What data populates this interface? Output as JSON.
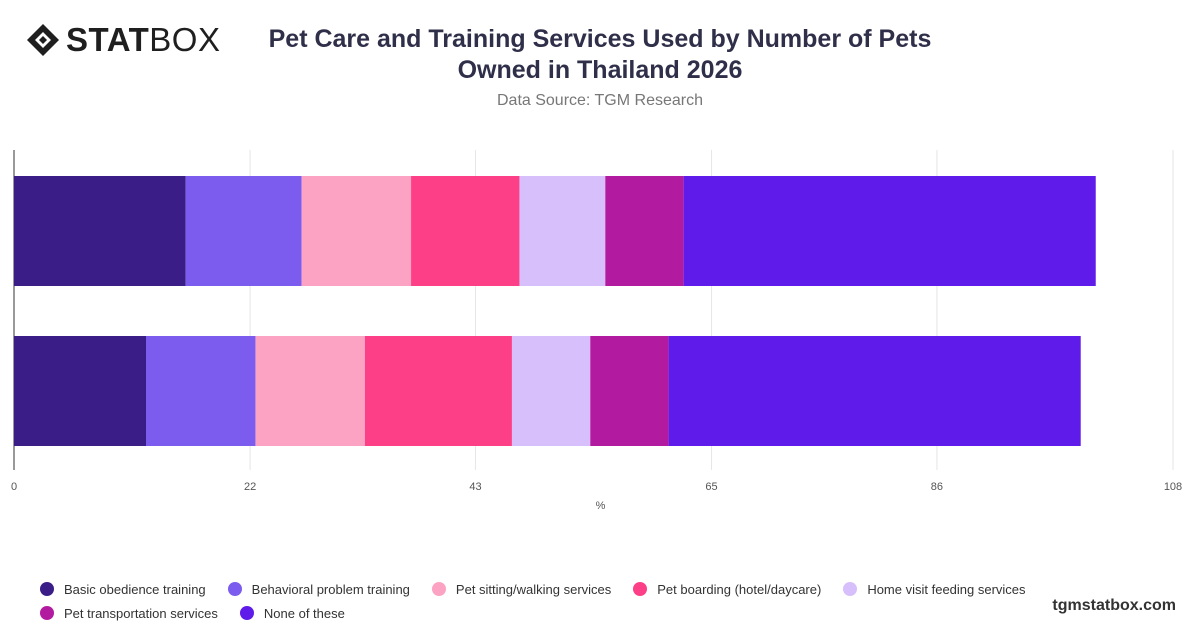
{
  "brand": {
    "logo_bold": "STAT",
    "logo_light": "BOX",
    "watermark": "tgmstatbox.com"
  },
  "chart_data": {
    "type": "bar",
    "orientation": "horizontal",
    "stacked": true,
    "title": "Pet Care and Training Services Used by Number of Pets Owned in Thailand 2026",
    "subtitle": "Data Source: TGM Research",
    "xlabel": "%",
    "ylabel": "",
    "xlim": [
      0,
      108
    ],
    "xticks": [
      0,
      22,
      43,
      65,
      86,
      108
    ],
    "categories": [
      "",
      ""
    ],
    "grid": "vertical",
    "legend_position": "bottom",
    "series": [
      {
        "name": "Basic obedience training",
        "color": "#3a1d87",
        "values": [
          16,
          12.3
        ]
      },
      {
        "name": "Behavioral problem training",
        "color": "#7b5cef",
        "values": [
          10.8,
          10.2
        ]
      },
      {
        "name": "Pet sitting/walking services",
        "color": "#fca3c3",
        "values": [
          10.2,
          10.2
        ]
      },
      {
        "name": "Pet boarding (hotel/daycare)",
        "color": "#fc3f86",
        "values": [
          10.1,
          13.7
        ]
      },
      {
        "name": "Home visit feeding services",
        "color": "#d6bffa",
        "values": [
          8,
          7.3
        ]
      },
      {
        "name": "Pet transportation services",
        "color": "#b21ba0",
        "values": [
          7.3,
          7.3
        ]
      },
      {
        "name": "None of these",
        "color": "#5e1be9",
        "values": [
          38.4,
          38.4
        ]
      }
    ]
  }
}
